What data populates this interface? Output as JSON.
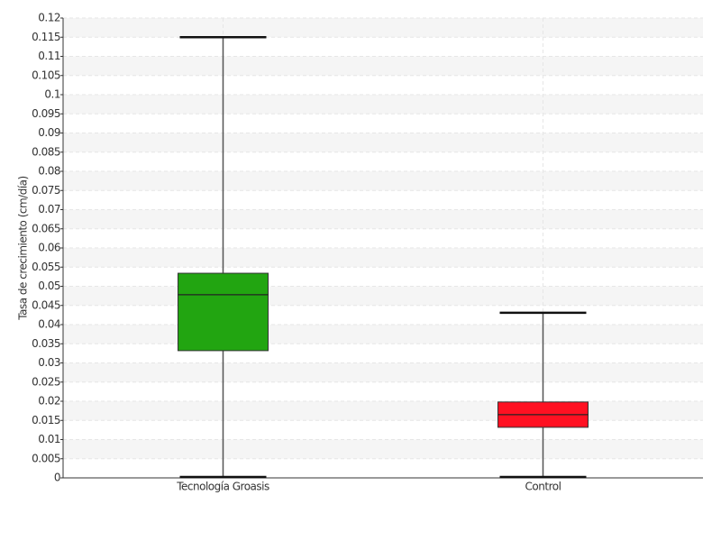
{
  "chart_data": {
    "type": "box",
    "y_label": "Tasa de crecimiento (cm/día)",
    "categories": [
      "Tecnología Groasis",
      "Control"
    ],
    "boxes": [
      {
        "min": 0,
        "q1": 0.0332,
        "median": 0.0478,
        "q3": 0.0534,
        "max": 0.115,
        "color": "#22a511"
      },
      {
        "min": 0,
        "q1": 0.0132,
        "median": 0.0165,
        "q3": 0.0198,
        "max": 0.0431,
        "color": "#ff1122"
      }
    ],
    "ylim": [
      0,
      0.12
    ],
    "yticks": [
      0,
      0.005,
      0.01,
      0.015,
      0.02,
      0.025,
      0.03,
      0.035,
      0.04,
      0.045,
      0.05,
      0.055,
      0.06,
      0.065,
      0.07,
      0.075,
      0.08,
      0.085,
      0.09,
      0.095,
      0.1,
      0.105,
      0.11,
      0.115,
      0.12
    ],
    "grid": true
  }
}
